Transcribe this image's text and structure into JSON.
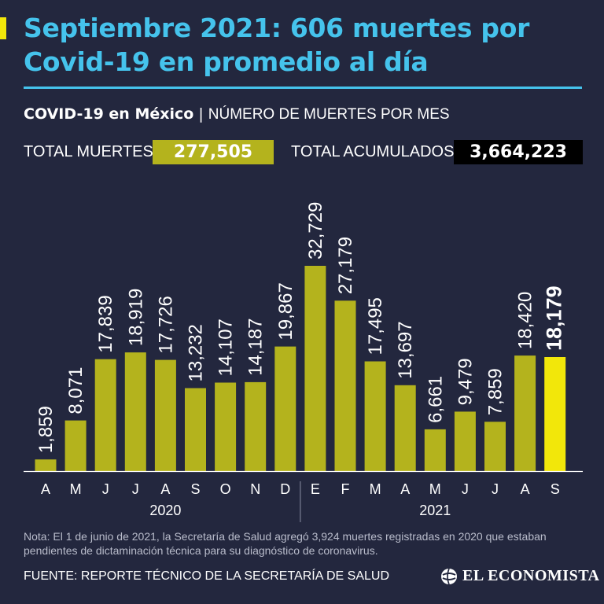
{
  "header": {
    "title": "Septiembre 2021: 606 muertes por Covid-19 en promedio al día",
    "subtitle_strong": "COVID-19 en México",
    "subtitle_sep": "|",
    "subtitle_light": "NÚMERO DE MUERTES POR MES"
  },
  "totals": {
    "deaths_label": "TOTAL MUERTES:",
    "deaths_value": "277,505",
    "cumulative_label": "TOTAL ACUMULADOS:",
    "cumulative_value": "3,664,223"
  },
  "chart_data": {
    "type": "bar",
    "title": "NÚMERO DE MUERTES POR MES",
    "categories": [
      "A",
      "M",
      "J",
      "J",
      "A",
      "S",
      "O",
      "N",
      "D",
      "E",
      "F",
      "M",
      "A",
      "M",
      "J",
      "J",
      "A",
      "S"
    ],
    "values": [
      1859,
      8071,
      17839,
      18919,
      17726,
      13232,
      14107,
      14187,
      19867,
      32729,
      27179,
      17495,
      13697,
      6661,
      9479,
      7859,
      18420,
      18179
    ],
    "value_labels": [
      "1,859",
      "8,071",
      "17,839",
      "18,919",
      "17,726",
      "13,232",
      "14,107",
      "14,187",
      "19,867",
      "32,729",
      "27,179",
      "17,495",
      "13,697",
      "6,661",
      "9,479",
      "7,859",
      "18,420",
      "18,179"
    ],
    "year_groups": [
      {
        "label": "2020",
        "start": 0,
        "end": 8
      },
      {
        "label": "2021",
        "start": 9,
        "end": 17
      }
    ],
    "highlight_index": 17,
    "ylim": [
      0,
      33000
    ],
    "xlabel": "",
    "ylabel": "",
    "colors": {
      "bar": "#b4b31d",
      "highlight": "#f2e70a",
      "axis": "#ffffff",
      "text": "#ffffff"
    }
  },
  "footer": {
    "note": "Nota: El 1 de junio de 2021, la Secretaría de Salud agregó 3,924 muertes registradas en 2020 que estaban pendientes de dictaminación técnica para su diagnóstico de coronavirus.",
    "source": "FUENTE: REPORTE TÉCNICO DE LA SECRETARÍA DE SALUD",
    "logo_text": "EL ECONOMISTA",
    "logo_icon": "globe-icon"
  }
}
